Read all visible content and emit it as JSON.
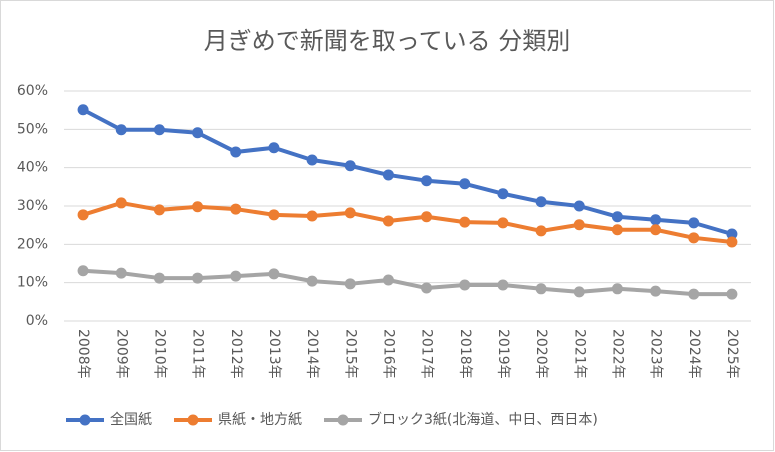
{
  "chart_data": {
    "type": "line",
    "title": "月ぎめで新聞を取っている 分類別",
    "categories": [
      "2008年",
      "2009年",
      "2010年",
      "2011年",
      "2012年",
      "2013年",
      "2014年",
      "2015年",
      "2016年",
      "2017年",
      "2018年",
      "2019年",
      "2020年",
      "2021年",
      "2022年",
      "2023年",
      "2024年",
      "2025年"
    ],
    "series": [
      {
        "name": "全国紙",
        "color": "#4472c4",
        "values": [
          55.1,
          49.9,
          49.9,
          49.1,
          44.1,
          45.2,
          42.0,
          40.5,
          38.1,
          36.6,
          35.8,
          33.2,
          31.1,
          30.0,
          27.2,
          26.4,
          25.6,
          22.7
        ]
      },
      {
        "name": "県紙・地方紙",
        "color": "#ed7d31",
        "values": [
          27.7,
          30.8,
          29.0,
          29.8,
          29.2,
          27.7,
          27.4,
          28.2,
          26.1,
          27.2,
          25.8,
          25.6,
          23.5,
          25.1,
          23.8,
          23.8,
          21.7,
          20.6
        ]
      },
      {
        "name": "ブロック3紙(北海道、中日、西日本)",
        "color": "#a5a5a5",
        "values": [
          13.1,
          12.5,
          11.2,
          11.2,
          11.7,
          12.3,
          10.4,
          9.7,
          10.7,
          8.6,
          9.4,
          9.4,
          8.4,
          7.6,
          8.4,
          7.8,
          7.0,
          7.0
        ]
      }
    ],
    "ylim": [
      0,
      60
    ],
    "yticks": [
      {
        "value": 0,
        "label": "0%"
      },
      {
        "value": 10,
        "label": "10%"
      },
      {
        "value": 20,
        "label": "20%"
      },
      {
        "value": 30,
        "label": "30%"
      },
      {
        "value": 40,
        "label": "40%"
      },
      {
        "value": 50,
        "label": "50%"
      },
      {
        "value": 60,
        "label": "60%"
      }
    ],
    "grid": true,
    "legend": "bottom"
  }
}
